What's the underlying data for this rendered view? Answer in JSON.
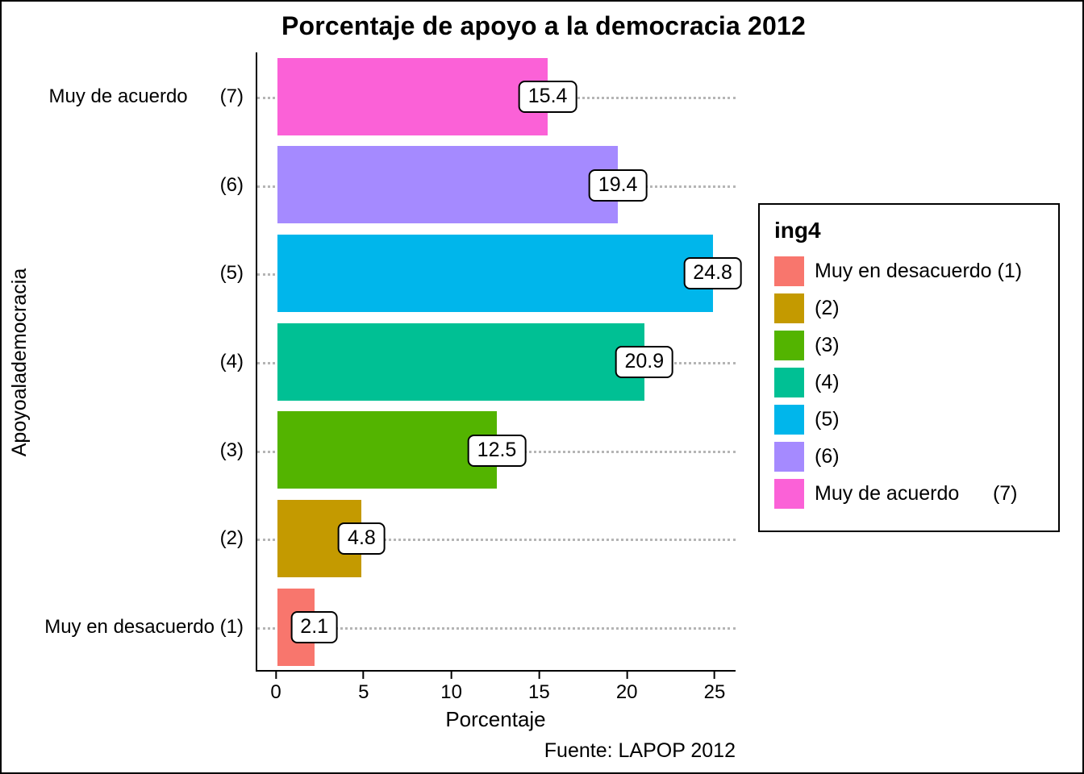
{
  "chart_data": {
    "type": "bar",
    "orientation": "horizontal",
    "title": "Porcentaje de apoyo a la democracia 2012",
    "xlabel": "Porcentaje",
    "ylabel": "Apoyoalademocracia",
    "caption": "Fuente: LAPOP 2012",
    "xlim": [
      0,
      26
    ],
    "x_ticks": [
      0,
      5,
      10,
      15,
      20,
      25
    ],
    "grid": "dotted horizontal gridlines, gray",
    "legend_position": "right",
    "rows": [
      {
        "category": "Muy de acuerdo (7)",
        "axis_label": "Muy de acuerdo      (7)",
        "value": 15.4,
        "color": "#FB61D7"
      },
      {
        "category": "(6)",
        "axis_label": "(6)",
        "value": 19.4,
        "color": "#A58AFF"
      },
      {
        "category": "(5)",
        "axis_label": "(5)",
        "value": 24.8,
        "color": "#00B6EB"
      },
      {
        "category": "(4)",
        "axis_label": "(4)",
        "value": 20.9,
        "color": "#00C094"
      },
      {
        "category": "(3)",
        "axis_label": "(3)",
        "value": 12.5,
        "color": "#53B400"
      },
      {
        "category": "(2)",
        "axis_label": "(2)",
        "value": 4.8,
        "color": "#C49A00"
      },
      {
        "category": "Muy en desacuerdo (1)",
        "axis_label": "Muy en desacuerdo (1)",
        "value": 2.1,
        "color": "#F8766D"
      }
    ],
    "legend": {
      "title": "ing4",
      "items": [
        {
          "label": "Muy en desacuerdo (1)",
          "color": "#F8766D"
        },
        {
          "label": "(2)",
          "color": "#C49A00"
        },
        {
          "label": "(3)",
          "color": "#53B400"
        },
        {
          "label": "(4)",
          "color": "#00C094"
        },
        {
          "label": "(5)",
          "color": "#00B6EB"
        },
        {
          "label": "(6)",
          "color": "#A58AFF"
        },
        {
          "label": "Muy de acuerdo      (7)",
          "color": "#FB61D7"
        }
      ]
    }
  }
}
